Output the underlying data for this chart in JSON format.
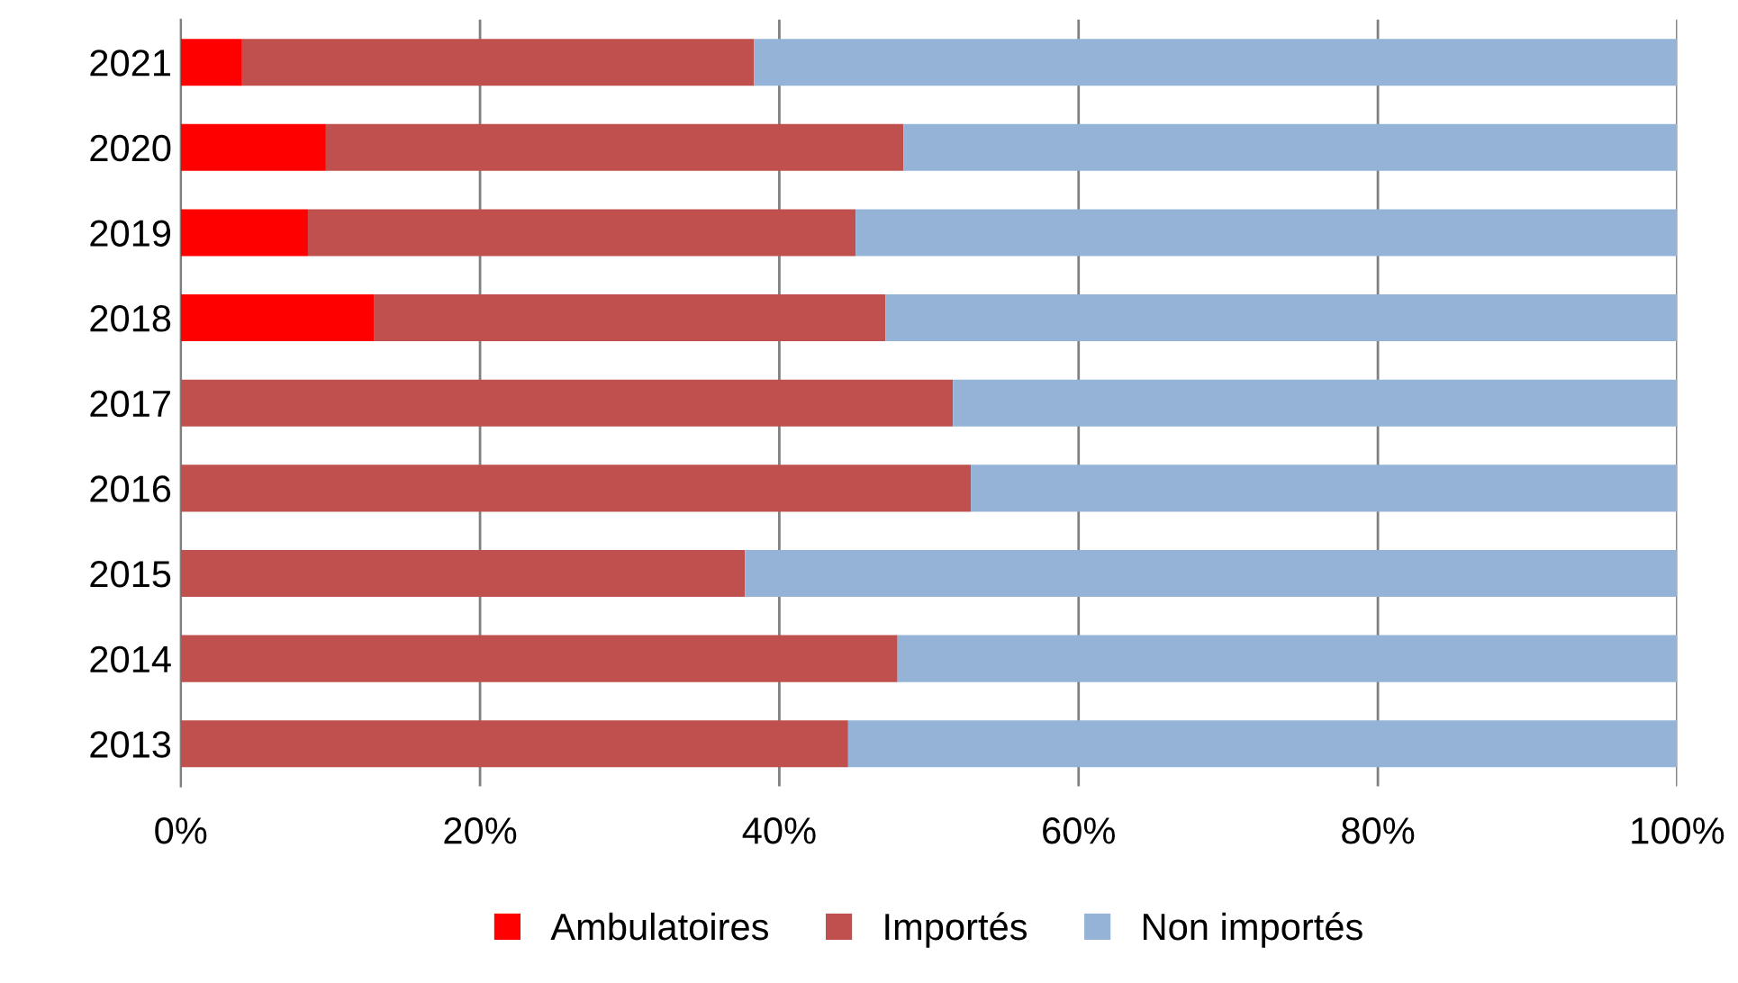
{
  "chart_data": {
    "type": "bar",
    "orientation": "horizontal",
    "stacked": true,
    "categories": [
      "2021",
      "2020",
      "2019",
      "2018",
      "2017",
      "2016",
      "2015",
      "2014",
      "2013"
    ],
    "series": [
      {
        "name": "Ambulatoires",
        "color": "#ff0000",
        "values": [
          4.1,
          9.7,
          8.5,
          12.9,
          0,
          0,
          0,
          0,
          0
        ]
      },
      {
        "name": "Importés",
        "color": "#c0504d",
        "values": [
          34.2,
          38.6,
          36.6,
          34.2,
          51.6,
          52.8,
          37.7,
          47.9,
          44.6
        ]
      },
      {
        "name": "Non importés",
        "color": "#95b3d7",
        "values": [
          61.7,
          51.7,
          54.9,
          52.9,
          48.4,
          47.2,
          62.3,
          52.1,
          55.4
        ]
      }
    ],
    "xlim": [
      0,
      100
    ],
    "xticks": [
      {
        "value": 0,
        "label": "0%"
      },
      {
        "value": 20,
        "label": "20%"
      },
      {
        "value": 40,
        "label": "40%"
      },
      {
        "value": 60,
        "label": "60%"
      },
      {
        "value": 80,
        "label": "80%"
      },
      {
        "value": 100,
        "label": "100%"
      }
    ],
    "grid": "x",
    "legend": "bottom"
  }
}
